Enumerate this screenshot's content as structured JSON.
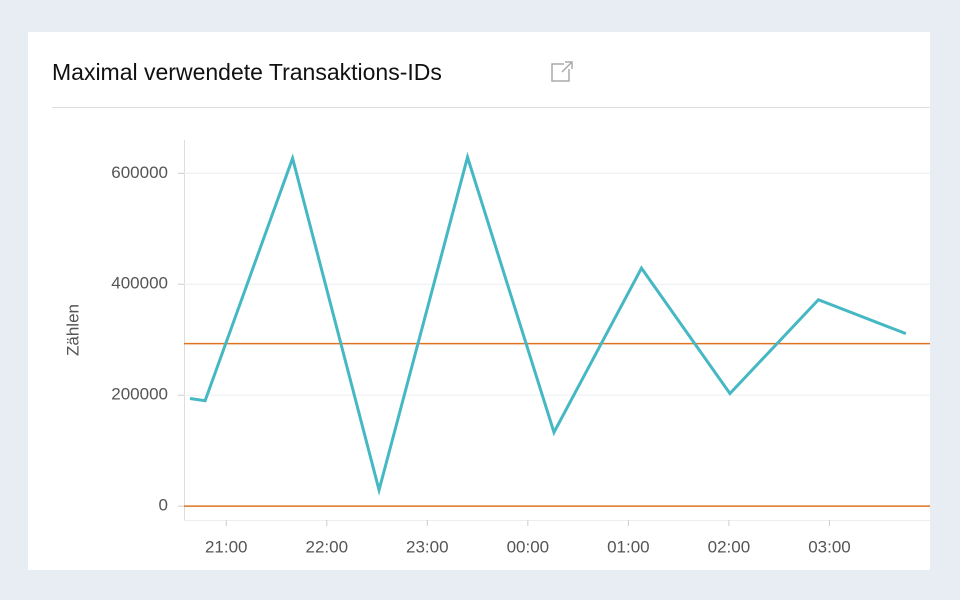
{
  "chart_data": {
    "type": "line",
    "title": "Maximal verwendete Transaktions-IDs",
    "y_label": "Zählen",
    "x": [
      20.64,
      20.79,
      21.66,
      22.52,
      23.4,
      24.26,
      25.13,
      26.01,
      26.89,
      27.76
    ],
    "series": [
      {
        "color": "#45b8c4",
        "values": [
          194000,
          190000,
          627000,
          29000,
          629000,
          133000,
          429000,
          203000,
          372000,
          311000
        ]
      }
    ],
    "thresholds": [
      293000,
      0
    ],
    "threshold_color": "#e0731e",
    "xlim": [
      20.58,
      28.0
    ],
    "xticks": [
      {
        "value": 21,
        "label": "21:00"
      },
      {
        "value": 22,
        "label": "22:00"
      },
      {
        "value": 23,
        "label": "23:00"
      },
      {
        "value": 24,
        "label": "00:00"
      },
      {
        "value": 25,
        "label": "01:00"
      },
      {
        "value": 26,
        "label": "02:00"
      },
      {
        "value": 27,
        "label": "03:00"
      }
    ],
    "ylim": [
      -25000,
      660000
    ],
    "yticks": [
      0,
      200000,
      400000,
      600000
    ],
    "grid": true
  }
}
